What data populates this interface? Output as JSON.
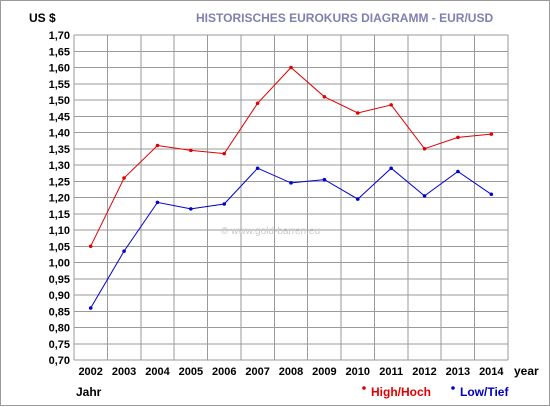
{
  "chart_data": {
    "type": "line",
    "title": "HISTORISCHES EUROKURS DIAGRAMM -  EUR/USD",
    "ylabel": "US $",
    "xlabel_right": "year",
    "xlabel_bottom": "Jahr",
    "watermark": "© www.gold-barren.eu",
    "categories": [
      "2002",
      "2003",
      "2004",
      "2005",
      "2006",
      "2007",
      "2008",
      "2009",
      "2010",
      "2011",
      "2012",
      "2013",
      "2014"
    ],
    "ylim": [
      0.7,
      1.7
    ],
    "yticks": [
      "0,70",
      "0,75",
      "0,80",
      "0,85",
      "0,90",
      "0,95",
      "1,00",
      "1,05",
      "1,10",
      "1,15",
      "1,20",
      "1,25",
      "1,30",
      "1,35",
      "1,40",
      "1,45",
      "1,50",
      "1,55",
      "1,60",
      "1,65",
      "1,70"
    ],
    "grid": true,
    "legend_position": "bottom-right",
    "series": [
      {
        "name": "High/Hoch",
        "color": "#e00000",
        "values": [
          1.05,
          1.26,
          1.36,
          1.345,
          1.335,
          1.49,
          1.6,
          1.51,
          1.46,
          1.485,
          1.35,
          1.385,
          1.395
        ]
      },
      {
        "name": "Low/Tief",
        "color": "#0000d0",
        "values": [
          0.86,
          1.035,
          1.185,
          1.165,
          1.18,
          1.29,
          1.245,
          1.255,
          1.195,
          1.29,
          1.205,
          1.28,
          1.21
        ]
      }
    ],
    "colors": {
      "title": "#8080b0",
      "legend_high_text": "#e00000",
      "legend_low_text": "#0000c0",
      "grid": "#9a9a9a",
      "axis_text": "#000000"
    }
  }
}
